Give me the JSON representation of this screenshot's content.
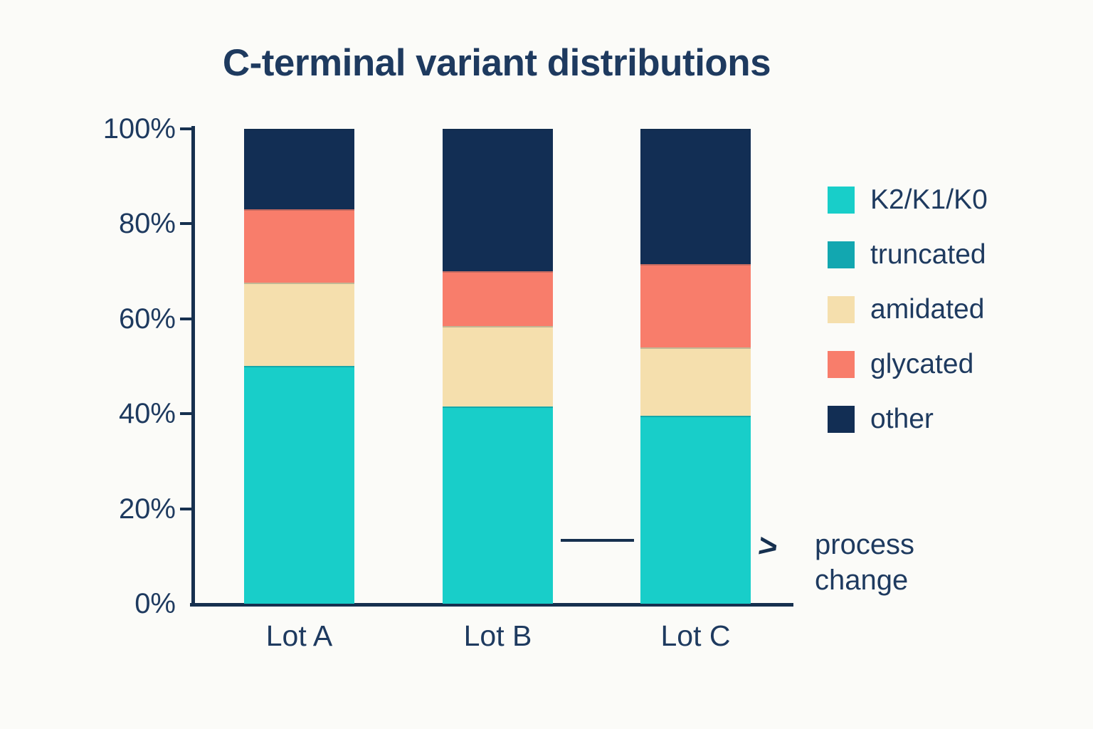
{
  "title": "C-terminal variant distributions",
  "colors": {
    "background": "#FBFBF8",
    "text": "#1E3A5F",
    "axis": "#16304F"
  },
  "chart_data": {
    "type": "bar",
    "stacked": true,
    "title": "C-terminal variant distributions",
    "xlabel": "",
    "ylabel": "",
    "ylim": [
      0,
      100
    ],
    "grid": false,
    "legend_position": "right",
    "categories": [
      "Lot A",
      "Lot B",
      "Lot C"
    ],
    "series": [
      {
        "name": "K2/K1/K0",
        "color": "#18CEC9",
        "values": [
          50.0,
          41.5,
          39.5
        ]
      },
      {
        "name": "truncated",
        "color": "#12A7B0",
        "values": [
          0,
          0,
          0
        ]
      },
      {
        "name": "amidated",
        "color": "#F5DFAD",
        "values": [
          17.5,
          17.0,
          14.5
        ]
      },
      {
        "name": "glycated",
        "color": "#F87D6B",
        "values": [
          15.5,
          11.5,
          17.5
        ]
      },
      {
        "name": "other",
        "color": "#122E54",
        "values": [
          17.0,
          30.0,
          28.5
        ]
      }
    ],
    "y_ticks": [
      {
        "value": 0,
        "label": "0%"
      },
      {
        "value": 20,
        "label": "20%"
      },
      {
        "value": 40,
        "label": "40%"
      },
      {
        "value": 60,
        "label": "60%"
      },
      {
        "value": 80,
        "label": "80%"
      },
      {
        "value": 100,
        "label": "100%"
      }
    ],
    "annotation": {
      "arrow": ">",
      "line1": "process",
      "line2": "change"
    }
  }
}
